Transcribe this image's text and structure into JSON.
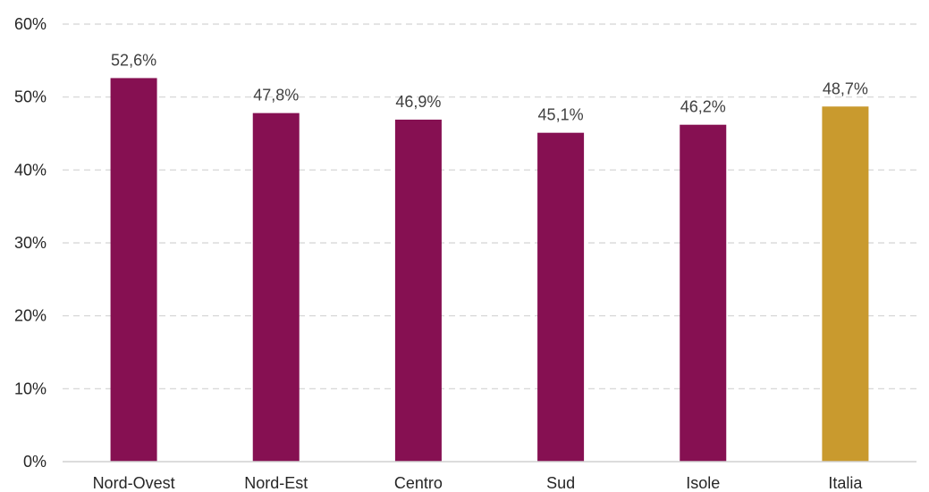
{
  "chart_data": {
    "type": "bar",
    "categories": [
      "Nord-Ovest",
      "Nord-Est",
      "Centro",
      "Sud",
      "Isole",
      "Italia"
    ],
    "values": [
      52.6,
      47.8,
      46.9,
      45.1,
      46.2,
      48.7
    ],
    "data_labels": [
      "52,6%",
      "47,8%",
      "46,9%",
      "45,1%",
      "46,2%",
      "48,7%"
    ],
    "y_ticks": [
      0,
      10,
      20,
      30,
      40,
      50,
      60
    ],
    "y_tick_labels": [
      "0%",
      "10%",
      "20%",
      "30%",
      "40%",
      "50%",
      "60%"
    ],
    "ylim": [
      0,
      60
    ],
    "grid": true,
    "legend": "none",
    "title": "",
    "xlabel": "",
    "ylabel": "",
    "colors": {
      "default_bar": "#861052",
      "highlight_bar": "#C99A2E",
      "highlight_category": "Italia"
    }
  }
}
